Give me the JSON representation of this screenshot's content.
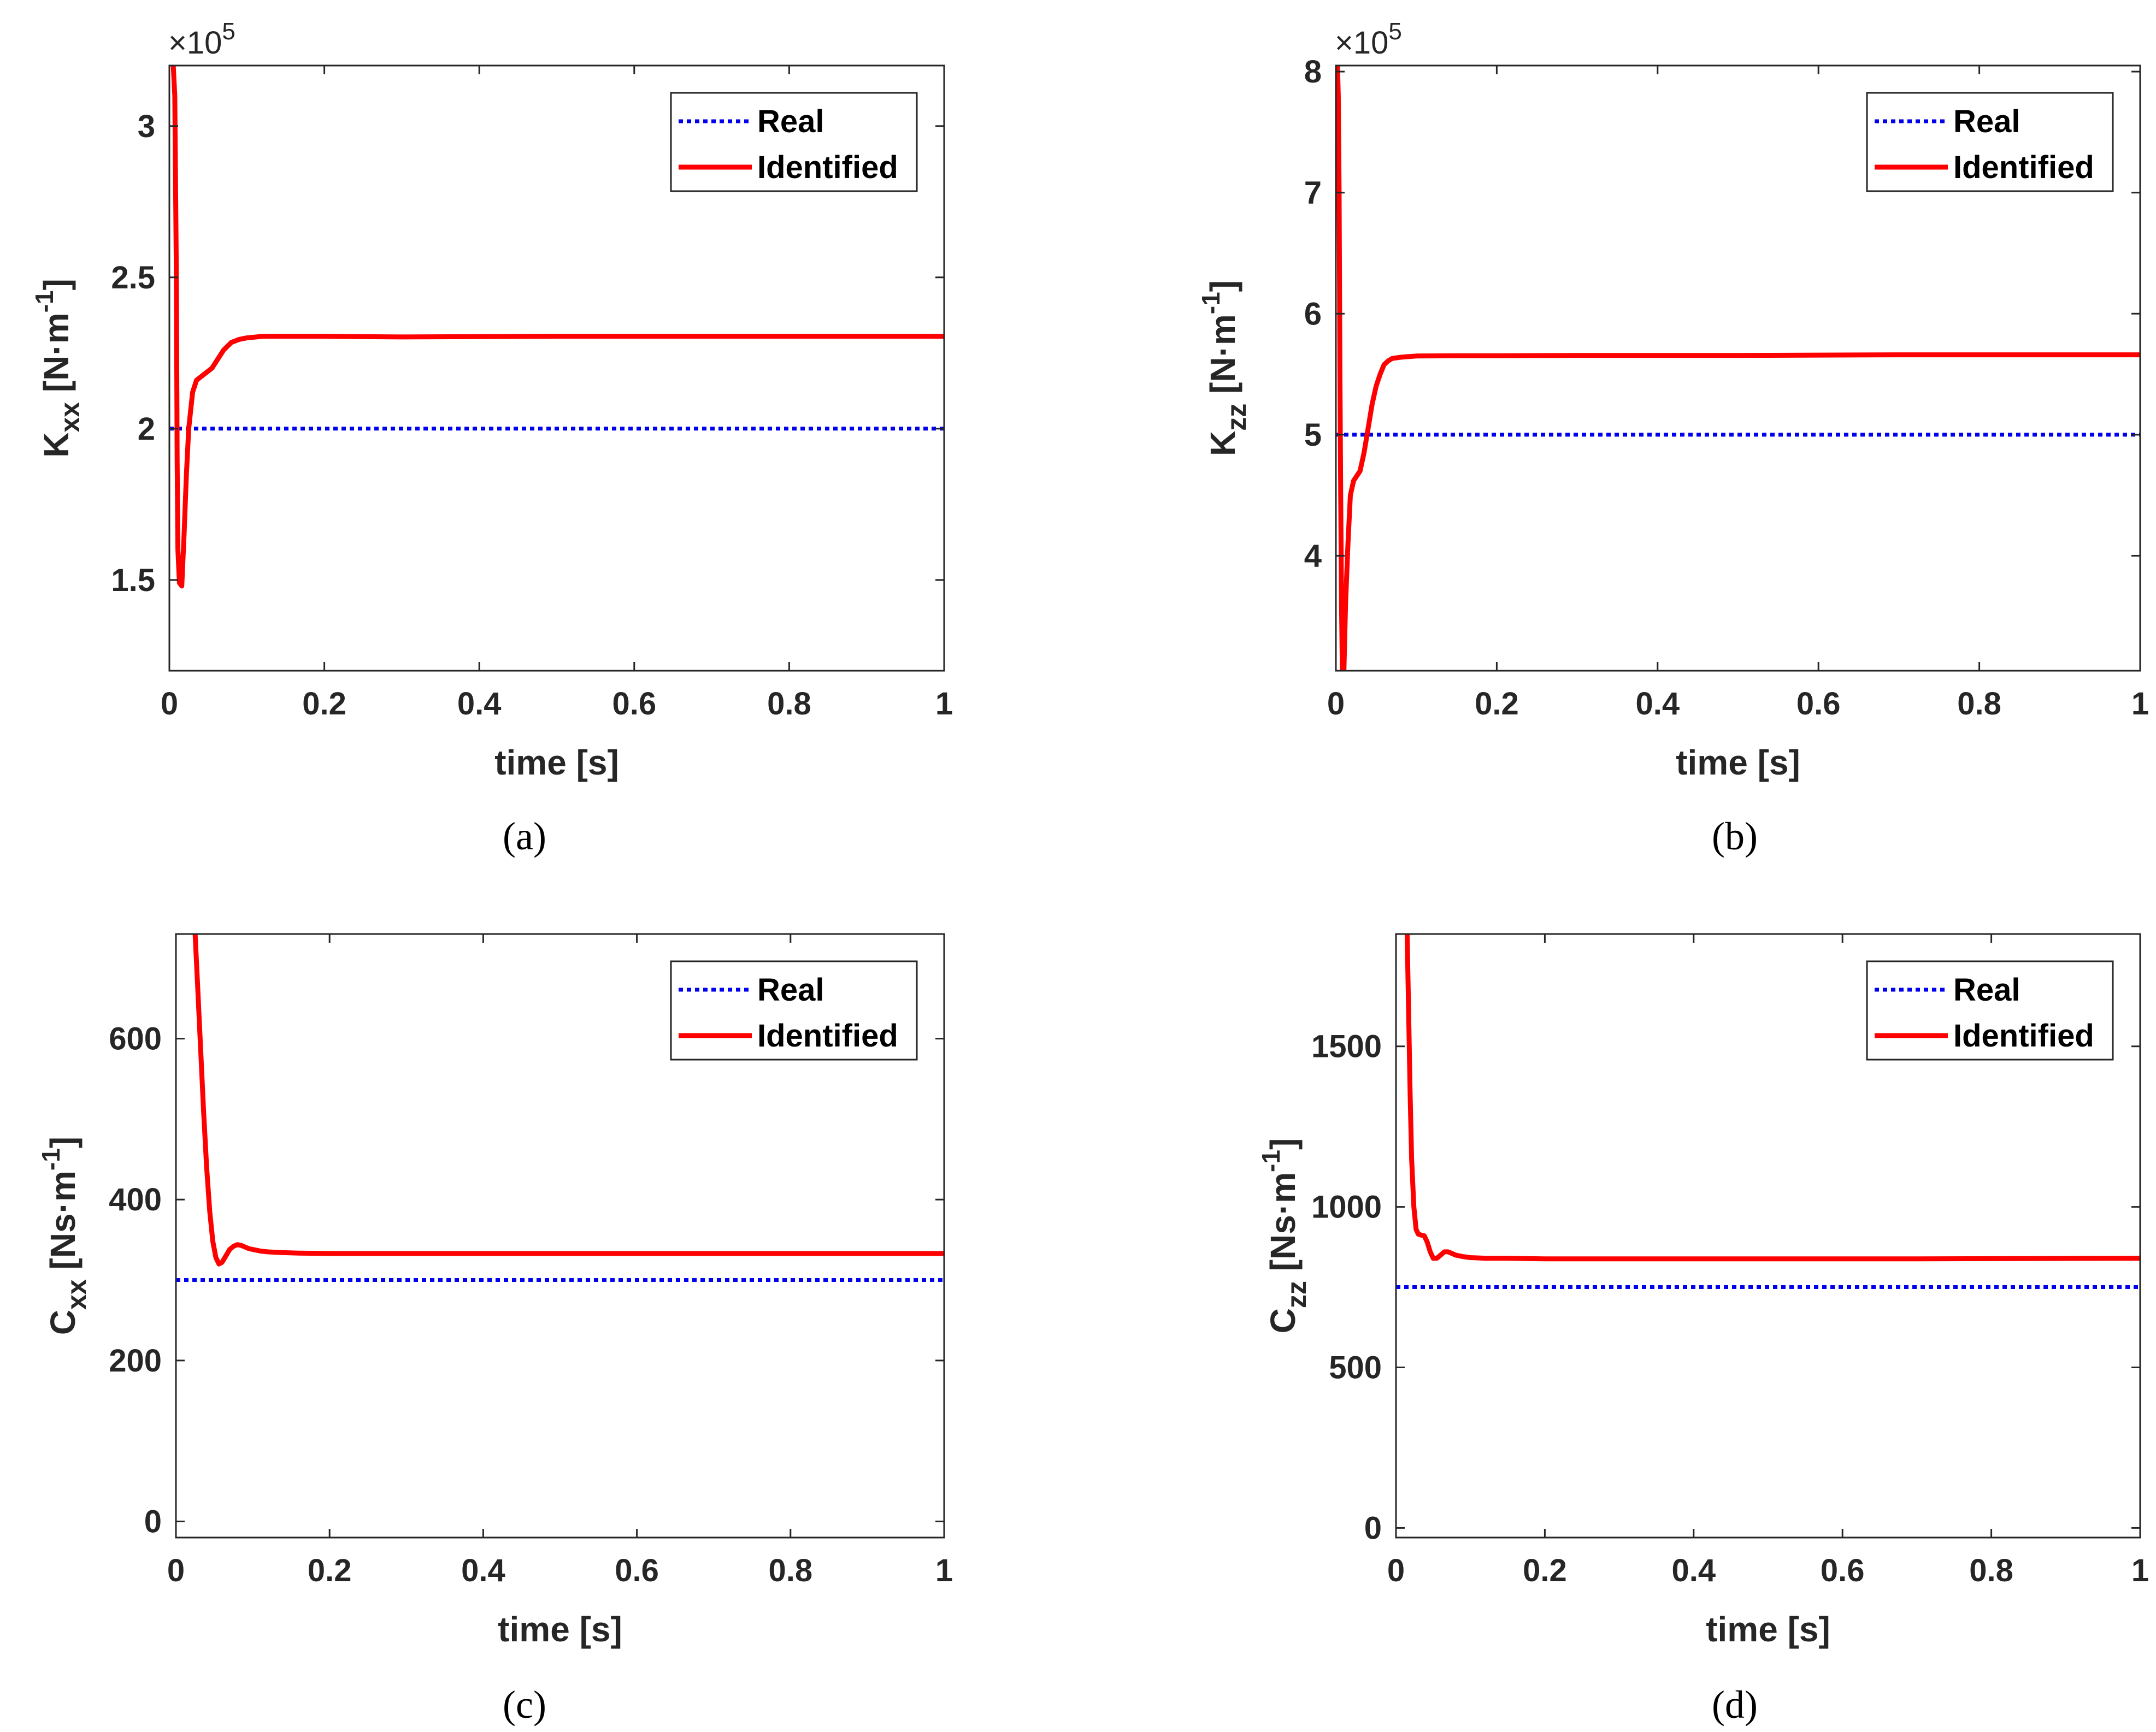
{
  "colors": {
    "real": "#0000ee",
    "identified": "#ff0000",
    "axis": "#262626"
  },
  "legend": {
    "real_label": "Real",
    "identified_label": "Identified"
  },
  "chart_data": [
    {
      "panel": "a",
      "caption": "(a)",
      "type": "line",
      "xlabel": "time [s]",
      "ylabel": {
        "main": "K",
        "sub": "xx",
        "unit_prefix": " [N·m",
        "unit_sup": "-1",
        "unit_suffix": "]"
      },
      "xlim": [
        0,
        1
      ],
      "ylim": [
        1.2,
        3.2
      ],
      "xticks": [
        0,
        0.2,
        0.4,
        0.6,
        0.8,
        1
      ],
      "xtick_labels": [
        "0",
        "0.2",
        "0.4",
        "0.6",
        "0.8",
        "1"
      ],
      "yticks": [
        1.5,
        2,
        2.5,
        3
      ],
      "ytick_labels": [
        "1.5",
        "2",
        "2.5",
        "3"
      ],
      "exponent": {
        "base": "×10",
        "power": "5"
      },
      "legend_position": "top-right",
      "series": [
        {
          "name": "Real",
          "style": "dotted",
          "x": [
            0,
            1
          ],
          "y": [
            2.0,
            2.0
          ]
        },
        {
          "name": "Identified",
          "style": "solid",
          "x": [
            0.005,
            0.007,
            0.009,
            0.01,
            0.011,
            0.013,
            0.016,
            0.019,
            0.022,
            0.025,
            0.03,
            0.035,
            0.04,
            0.045,
            0.05,
            0.055,
            0.06,
            0.07,
            0.08,
            0.09,
            0.1,
            0.12,
            0.15,
            0.2,
            0.3,
            0.5,
            0.7,
            1.0
          ],
          "y": [
            3.2,
            3.1,
            2.5,
            1.9,
            1.6,
            1.49,
            1.48,
            1.65,
            1.85,
            2.0,
            2.12,
            2.16,
            2.17,
            2.18,
            2.19,
            2.2,
            2.22,
            2.26,
            2.285,
            2.295,
            2.3,
            2.305,
            2.305,
            2.305,
            2.303,
            2.305,
            2.305,
            2.305
          ]
        }
      ]
    },
    {
      "panel": "b",
      "caption": "(b)",
      "type": "line",
      "xlabel": "time [s]",
      "ylabel": {
        "main": "K",
        "sub": "zz",
        "unit_prefix": " [N·m",
        "unit_sup": "-1",
        "unit_suffix": "]"
      },
      "xlim": [
        0,
        1
      ],
      "ylim": [
        3.05,
        8.05
      ],
      "xticks": [
        0,
        0.2,
        0.4,
        0.6,
        0.8,
        1
      ],
      "xtick_labels": [
        "0",
        "0.2",
        "0.4",
        "0.6",
        "0.8",
        "1"
      ],
      "yticks": [
        4,
        5,
        6,
        7,
        8
      ],
      "ytick_labels": [
        "4",
        "5",
        "6",
        "7",
        "8"
      ],
      "exponent": {
        "base": "×10",
        "power": "5"
      },
      "legend_position": "top-right",
      "series": [
        {
          "name": "Real",
          "style": "dotted",
          "x": [
            0,
            1
          ],
          "y": [
            5.0,
            5.0
          ]
        },
        {
          "name": "Identified",
          "style": "solid",
          "x": [
            0.002,
            0.003,
            0.004,
            0.005,
            0.006,
            0.007,
            0.008,
            0.01,
            0.012,
            0.015,
            0.018,
            0.022,
            0.026,
            0.03,
            0.035,
            0.04,
            0.045,
            0.05,
            0.055,
            0.06,
            0.065,
            0.07,
            0.08,
            0.09,
            0.1,
            0.15,
            0.2,
            0.3,
            0.5,
            0.7,
            1.0
          ],
          "y": [
            8.05,
            7.8,
            7.0,
            5.5,
            4.5,
            3.6,
            3.05,
            3.05,
            3.6,
            4.1,
            4.5,
            4.62,
            4.66,
            4.7,
            4.85,
            5.05,
            5.25,
            5.4,
            5.5,
            5.58,
            5.61,
            5.63,
            5.64,
            5.645,
            5.65,
            5.652,
            5.652,
            5.655,
            5.655,
            5.66,
            5.66
          ]
        }
      ]
    },
    {
      "panel": "c",
      "caption": "(c)",
      "type": "line",
      "xlabel": "time [s]",
      "ylabel": {
        "main": "C",
        "sub": "xx",
        "unit_prefix": " [Ns·m",
        "unit_sup": "-1",
        "unit_suffix": "]"
      },
      "xlim": [
        0,
        1
      ],
      "ylim": [
        -20,
        730
      ],
      "xticks": [
        0,
        0.2,
        0.4,
        0.6,
        0.8,
        1
      ],
      "xtick_labels": [
        "0",
        "0.2",
        "0.4",
        "0.6",
        "0.8",
        "1"
      ],
      "yticks": [
        0,
        200,
        400,
        600
      ],
      "ytick_labels": [
        "0",
        "200",
        "400",
        "600"
      ],
      "legend_position": "top-right",
      "series": [
        {
          "name": "Real",
          "style": "dotted",
          "x": [
            0,
            1
          ],
          "y": [
            300,
            300
          ]
        },
        {
          "name": "Identified",
          "style": "solid",
          "x": [
            0.025,
            0.028,
            0.032,
            0.036,
            0.04,
            0.044,
            0.048,
            0.052,
            0.056,
            0.06,
            0.065,
            0.07,
            0.075,
            0.08,
            0.085,
            0.09,
            0.095,
            0.1,
            0.11,
            0.12,
            0.14,
            0.16,
            0.2,
            0.3,
            0.5,
            0.7,
            1.0
          ],
          "y": [
            730,
            670,
            590,
            510,
            440,
            385,
            348,
            328,
            320,
            322,
            330,
            338,
            342,
            344,
            343,
            341,
            339,
            338,
            336,
            335,
            334,
            333.5,
            333,
            333,
            333,
            333,
            333
          ]
        }
      ]
    },
    {
      "panel": "d",
      "caption": "(d)",
      "type": "line",
      "xlabel": "time [s]",
      "ylabel": {
        "main": "C",
        "sub": "zz",
        "unit_prefix": " [Ns·m",
        "unit_sup": "-1",
        "unit_suffix": "]"
      },
      "xlim": [
        0,
        1
      ],
      "ylim": [
        -30,
        1850
      ],
      "xticks": [
        0,
        0.2,
        0.4,
        0.6,
        0.8,
        1
      ],
      "xtick_labels": [
        "0",
        "0.2",
        "0.4",
        "0.6",
        "0.8",
        "1"
      ],
      "yticks": [
        0,
        500,
        1000,
        1500
      ],
      "ytick_labels": [
        "0",
        "500",
        "1000",
        "1500"
      ],
      "legend_position": "top-right",
      "series": [
        {
          "name": "Real",
          "style": "dotted",
          "x": [
            0,
            1
          ],
          "y": [
            750,
            750
          ]
        },
        {
          "name": "Identified",
          "style": "solid",
          "x": [
            0.015,
            0.017,
            0.019,
            0.021,
            0.024,
            0.027,
            0.03,
            0.034,
            0.038,
            0.042,
            0.046,
            0.05,
            0.055,
            0.06,
            0.065,
            0.07,
            0.075,
            0.08,
            0.09,
            0.1,
            0.12,
            0.15,
            0.2,
            0.3,
            0.5,
            0.7,
            1.0
          ],
          "y": [
            1850,
            1600,
            1350,
            1150,
            1000,
            930,
            915,
            912,
            910,
            890,
            860,
            840,
            840,
            850,
            860,
            860,
            855,
            850,
            845,
            842,
            840,
            840,
            838,
            838,
            838,
            838,
            840
          ]
        }
      ]
    }
  ]
}
